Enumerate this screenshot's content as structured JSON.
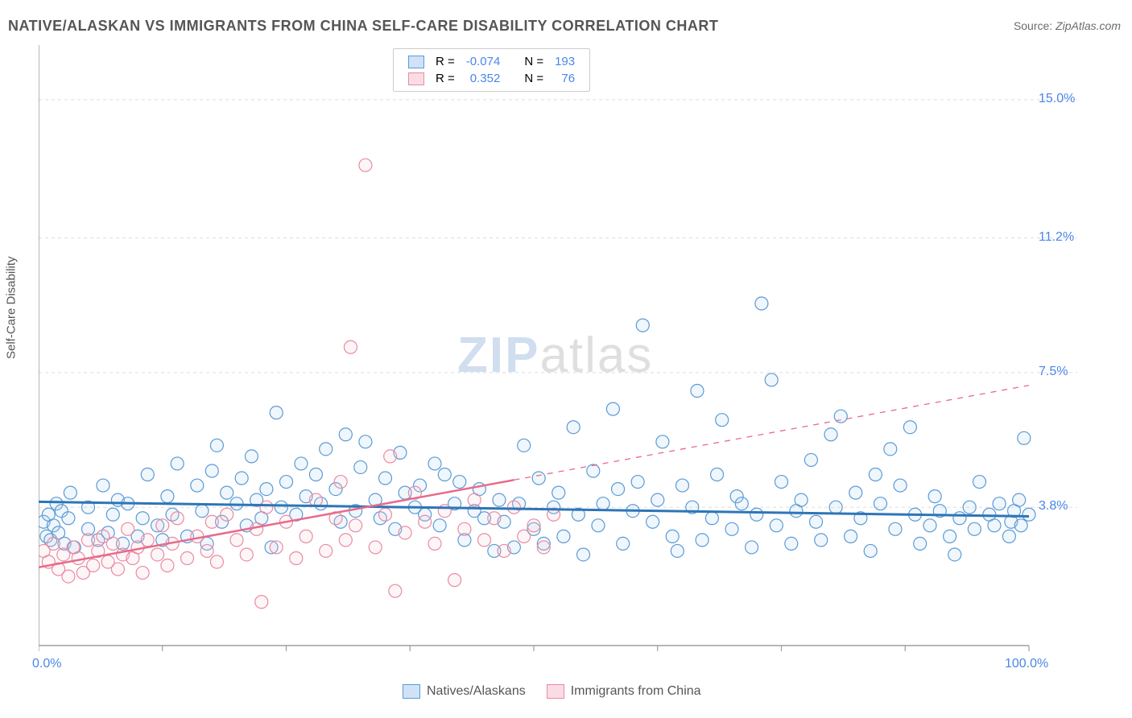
{
  "title": "NATIVE/ALASKAN VS IMMIGRANTS FROM CHINA SELF-CARE DISABILITY CORRELATION CHART",
  "source_label": "Source:",
  "source_value": "ZipAtlas.com",
  "ylabel": "Self-Care Disability",
  "watermark_zip": "ZIP",
  "watermark_atlas": "atlas",
  "chart": {
    "type": "scatter",
    "xlim": [
      0,
      100
    ],
    "ylim": [
      0,
      16.5
    ],
    "yticks": [
      3.8,
      7.5,
      11.2,
      15.0
    ],
    "ytick_labels": [
      "3.8%",
      "7.5%",
      "11.2%",
      "15.0%"
    ],
    "xtick_min_label": "0.0%",
    "xtick_max_label": "100.0%",
    "x_minor_ticks": [
      0,
      12.5,
      25,
      37.5,
      50,
      62.5,
      75,
      87.5,
      100
    ],
    "background_color": "#ffffff",
    "grid_color": "#dddddd",
    "axis_color": "#9e9e9e",
    "marker_radius": 8,
    "marker_stroke_width": 1.2,
    "marker_fill_opacity": 0.18,
    "series": [
      {
        "name": "Natives/Alaskans",
        "color_stroke": "#5b9bd5",
        "color_fill": "#a8cbef",
        "R": "-0.074",
        "N": "193",
        "trend": {
          "y_at_x0": 3.95,
          "y_at_x100": 3.55,
          "stroke": "#2e75b6",
          "width": 3,
          "dash_after_x": null
        },
        "points": [
          [
            0.5,
            3.4
          ],
          [
            0.8,
            3.0
          ],
          [
            1.0,
            3.6
          ],
          [
            1.2,
            2.9
          ],
          [
            1.5,
            3.3
          ],
          [
            1.8,
            3.9
          ],
          [
            2.0,
            3.1
          ],
          [
            2.3,
            3.7
          ],
          [
            2.6,
            2.8
          ],
          [
            3.0,
            3.5
          ],
          [
            3.2,
            4.2
          ],
          [
            3.6,
            2.7
          ],
          [
            5,
            3.2
          ],
          [
            5,
            3.8
          ],
          [
            6,
            2.9
          ],
          [
            6.5,
            4.4
          ],
          [
            7,
            3.1
          ],
          [
            7.5,
            3.6
          ],
          [
            8,
            4.0
          ],
          [
            8.5,
            2.8
          ],
          [
            9,
            3.9
          ],
          [
            10,
            3.0
          ],
          [
            10.5,
            3.5
          ],
          [
            11,
            4.7
          ],
          [
            12,
            3.3
          ],
          [
            12.5,
            2.9
          ],
          [
            13,
            4.1
          ],
          [
            13.5,
            3.6
          ],
          [
            14,
            5.0
          ],
          [
            15,
            3.0
          ],
          [
            16,
            4.4
          ],
          [
            16.5,
            3.7
          ],
          [
            17,
            2.8
          ],
          [
            17.5,
            4.8
          ],
          [
            18,
            5.5
          ],
          [
            18.5,
            3.4
          ],
          [
            19,
            4.2
          ],
          [
            20,
            3.9
          ],
          [
            20.5,
            4.6
          ],
          [
            21,
            3.3
          ],
          [
            21.5,
            5.2
          ],
          [
            22,
            4.0
          ],
          [
            22.5,
            3.5
          ],
          [
            23,
            4.3
          ],
          [
            23.5,
            2.7
          ],
          [
            24,
            6.4
          ],
          [
            24.5,
            3.8
          ],
          [
            25,
            4.5
          ],
          [
            26,
            3.6
          ],
          [
            26.5,
            5.0
          ],
          [
            27,
            4.1
          ],
          [
            28,
            4.7
          ],
          [
            28.5,
            3.9
          ],
          [
            29,
            5.4
          ],
          [
            30,
            4.3
          ],
          [
            30.5,
            3.4
          ],
          [
            31,
            5.8
          ],
          [
            32,
            3.7
          ],
          [
            32.5,
            4.9
          ],
          [
            33,
            5.6
          ],
          [
            34,
            4.0
          ],
          [
            34.5,
            3.5
          ],
          [
            35,
            4.6
          ],
          [
            36,
            3.2
          ],
          [
            36.5,
            5.3
          ],
          [
            37,
            4.2
          ],
          [
            38,
            3.8
          ],
          [
            38.5,
            4.4
          ],
          [
            39,
            3.6
          ],
          [
            40,
            5.0
          ],
          [
            40.5,
            3.3
          ],
          [
            41,
            4.7
          ],
          [
            42,
            3.9
          ],
          [
            42.5,
            4.5
          ],
          [
            43,
            2.9
          ],
          [
            44,
            3.7
          ],
          [
            44.5,
            4.3
          ],
          [
            45,
            3.5
          ],
          [
            46,
            2.6
          ],
          [
            46.5,
            4.0
          ],
          [
            47,
            3.4
          ],
          [
            48,
            2.7
          ],
          [
            48.5,
            3.9
          ],
          [
            49,
            5.5
          ],
          [
            50,
            3.2
          ],
          [
            50.5,
            4.6
          ],
          [
            51,
            2.8
          ],
          [
            52,
            3.8
          ],
          [
            52.5,
            4.2
          ],
          [
            53,
            3.0
          ],
          [
            54,
            6.0
          ],
          [
            54.5,
            3.6
          ],
          [
            55,
            2.5
          ],
          [
            56,
            4.8
          ],
          [
            56.5,
            3.3
          ],
          [
            57,
            3.9
          ],
          [
            58,
            6.5
          ],
          [
            58.5,
            4.3
          ],
          [
            59,
            2.8
          ],
          [
            60,
            3.7
          ],
          [
            60.5,
            4.5
          ],
          [
            61,
            8.8
          ],
          [
            62,
            3.4
          ],
          [
            62.5,
            4.0
          ],
          [
            63,
            5.6
          ],
          [
            64,
            3.0
          ],
          [
            64.5,
            2.6
          ],
          [
            65,
            4.4
          ],
          [
            66,
            3.8
          ],
          [
            66.5,
            7.0
          ],
          [
            67,
            2.9
          ],
          [
            68,
            3.5
          ],
          [
            68.5,
            4.7
          ],
          [
            69,
            6.2
          ],
          [
            70,
            3.2
          ],
          [
            70.5,
            4.1
          ],
          [
            71,
            3.9
          ],
          [
            72,
            2.7
          ],
          [
            72.5,
            3.6
          ],
          [
            73,
            9.4
          ],
          [
            74,
            7.3
          ],
          [
            74.5,
            3.3
          ],
          [
            75,
            4.5
          ],
          [
            76,
            2.8
          ],
          [
            76.5,
            3.7
          ],
          [
            77,
            4.0
          ],
          [
            78,
            5.1
          ],
          [
            78.5,
            3.4
          ],
          [
            79,
            2.9
          ],
          [
            80,
            5.8
          ],
          [
            80.5,
            3.8
          ],
          [
            81,
            6.3
          ],
          [
            82,
            3.0
          ],
          [
            82.5,
            4.2
          ],
          [
            83,
            3.5
          ],
          [
            84,
            2.6
          ],
          [
            84.5,
            4.7
          ],
          [
            85,
            3.9
          ],
          [
            86,
            5.4
          ],
          [
            86.5,
            3.2
          ],
          [
            87,
            4.4
          ],
          [
            88,
            6.0
          ],
          [
            88.5,
            3.6
          ],
          [
            89,
            2.8
          ],
          [
            90,
            3.3
          ],
          [
            90.5,
            4.1
          ],
          [
            91,
            3.7
          ],
          [
            92,
            3.0
          ],
          [
            92.5,
            2.5
          ],
          [
            93,
            3.5
          ],
          [
            94,
            3.8
          ],
          [
            94.5,
            3.2
          ],
          [
            95,
            4.5
          ],
          [
            96,
            3.6
          ],
          [
            96.5,
            3.3
          ],
          [
            97,
            3.9
          ],
          [
            98,
            3.0
          ],
          [
            98.2,
            3.4
          ],
          [
            98.5,
            3.7
          ],
          [
            99,
            4.0
          ],
          [
            99.2,
            3.3
          ],
          [
            99.5,
            5.7
          ],
          [
            100,
            3.6
          ]
        ]
      },
      {
        "name": "Immigrants from China",
        "color_stroke": "#e88ba2",
        "color_fill": "#f7c6d2",
        "R": "0.352",
        "N": "76",
        "trend": {
          "y_at_x0": 2.15,
          "y_at_x100": 7.15,
          "stroke": "#e86a8a",
          "width": 2.5,
          "dash_after_x": 48
        },
        "points": [
          [
            0.5,
            2.6
          ],
          [
            1,
            2.3
          ],
          [
            1.5,
            2.8
          ],
          [
            2,
            2.1
          ],
          [
            2.5,
            2.5
          ],
          [
            3,
            1.9
          ],
          [
            3.5,
            2.7
          ],
          [
            4,
            2.4
          ],
          [
            4.5,
            2.0
          ],
          [
            5,
            2.9
          ],
          [
            5.5,
            2.2
          ],
          [
            6,
            2.6
          ],
          [
            6.5,
            3.0
          ],
          [
            7,
            2.3
          ],
          [
            7.5,
            2.8
          ],
          [
            8,
            2.1
          ],
          [
            8.5,
            2.5
          ],
          [
            9,
            3.2
          ],
          [
            9.5,
            2.4
          ],
          [
            10,
            2.7
          ],
          [
            10.5,
            2.0
          ],
          [
            11,
            2.9
          ],
          [
            12,
            2.5
          ],
          [
            12.5,
            3.3
          ],
          [
            13,
            2.2
          ],
          [
            13.5,
            2.8
          ],
          [
            14,
            3.5
          ],
          [
            15,
            2.4
          ],
          [
            16,
            3.0
          ],
          [
            17,
            2.6
          ],
          [
            17.5,
            3.4
          ],
          [
            18,
            2.3
          ],
          [
            19,
            3.6
          ],
          [
            20,
            2.9
          ],
          [
            21,
            2.5
          ],
          [
            22,
            3.2
          ],
          [
            22.5,
            1.2
          ],
          [
            23,
            3.8
          ],
          [
            24,
            2.7
          ],
          [
            25,
            3.4
          ],
          [
            26,
            2.4
          ],
          [
            27,
            3.0
          ],
          [
            28,
            4.0
          ],
          [
            29,
            2.6
          ],
          [
            30,
            3.5
          ],
          [
            30.5,
            4.5
          ],
          [
            31,
            2.9
          ],
          [
            31.5,
            8.2
          ],
          [
            32,
            3.3
          ],
          [
            33,
            13.2
          ],
          [
            34,
            2.7
          ],
          [
            35,
            3.6
          ],
          [
            35.5,
            5.2
          ],
          [
            36,
            1.5
          ],
          [
            37,
            3.1
          ],
          [
            38,
            4.2
          ],
          [
            39,
            3.4
          ],
          [
            40,
            2.8
          ],
          [
            41,
            3.7
          ],
          [
            42,
            1.8
          ],
          [
            43,
            3.2
          ],
          [
            44,
            4.0
          ],
          [
            45,
            2.9
          ],
          [
            46,
            3.5
          ],
          [
            47,
            2.6
          ],
          [
            48,
            3.8
          ],
          [
            49,
            3.0
          ],
          [
            50,
            3.3
          ],
          [
            51,
            2.7
          ],
          [
            52,
            3.6
          ]
        ]
      }
    ]
  },
  "legend_top": {
    "rows": [
      {
        "swatch_fill": "#cfe2f7",
        "swatch_border": "#5b9bd5",
        "r_label": "R =",
        "r_val": "-0.074",
        "n_label": "N =",
        "n_val": "193"
      },
      {
        "swatch_fill": "#fadce4",
        "swatch_border": "#e88ba2",
        "r_label": "R =",
        "r_val": "0.352",
        "n_label": "N =",
        "n_val": "76"
      }
    ]
  },
  "legend_bottom": {
    "items": [
      {
        "swatch_fill": "#cfe2f7",
        "swatch_border": "#5b9bd5",
        "label": "Natives/Alaskans"
      },
      {
        "swatch_fill": "#fadce4",
        "swatch_border": "#e88ba2",
        "label": "Immigrants from China"
      }
    ]
  }
}
